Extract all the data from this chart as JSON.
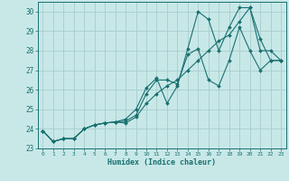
{
  "xlabel": "Humidex (Indice chaleur)",
  "bg_color": "#c8e8e8",
  "line_color": "#1a7070",
  "grid_color": "#a8cccc",
  "xlim": [
    -0.5,
    23.5
  ],
  "ylim": [
    23,
    30.5
  ],
  "yticks": [
    23,
    24,
    25,
    26,
    27,
    28,
    29,
    30
  ],
  "xticks": [
    0,
    1,
    2,
    3,
    4,
    5,
    6,
    7,
    8,
    9,
    10,
    11,
    12,
    13,
    14,
    15,
    16,
    17,
    18,
    19,
    20,
    21,
    22,
    23
  ],
  "series": [
    [
      23.9,
      23.35,
      23.5,
      23.5,
      24.0,
      24.2,
      24.3,
      24.35,
      24.5,
      25.0,
      26.1,
      26.6,
      25.3,
      26.2,
      28.1,
      30.0,
      29.6,
      28.0,
      29.2,
      30.2,
      30.2,
      28.6,
      27.5,
      27.5
    ],
    [
      23.9,
      23.35,
      23.5,
      23.5,
      24.0,
      24.2,
      24.3,
      24.35,
      24.4,
      24.7,
      25.8,
      26.5,
      26.5,
      26.3,
      27.8,
      28.1,
      26.5,
      26.2,
      27.5,
      29.2,
      28.0,
      27.0,
      27.5,
      27.5
    ],
    [
      23.9,
      23.35,
      23.5,
      23.5,
      24.0,
      24.2,
      24.3,
      24.35,
      24.3,
      24.6,
      25.3,
      25.8,
      26.2,
      26.5,
      27.0,
      27.5,
      28.0,
      28.5,
      28.8,
      29.5,
      30.2,
      28.0,
      28.0,
      27.5
    ]
  ]
}
